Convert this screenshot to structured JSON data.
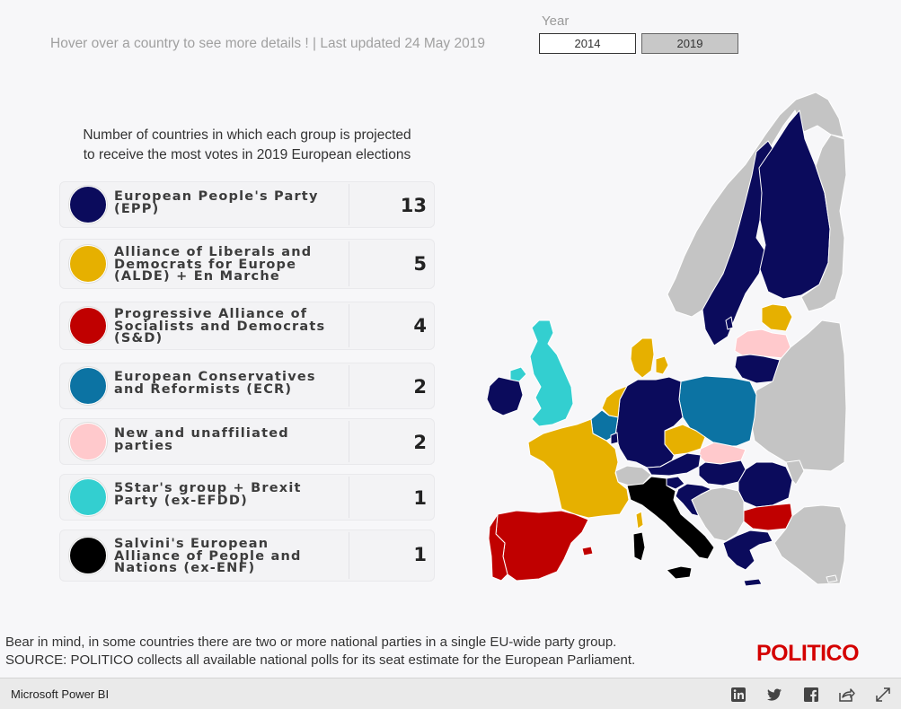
{
  "header": {
    "hover_note": "Hover over a country to see more details ! | Last updated 24 May 2019"
  },
  "year_slicer": {
    "label": "Year",
    "options": [
      "2014",
      "2019"
    ],
    "selected": "2019"
  },
  "legend": {
    "subtitle_line1": "Number of countries in which each group is projected",
    "subtitle_line2": "to receive the most votes in 2019 European elections",
    "items": [
      {
        "label": "European People's Party (EPP)",
        "count": "13",
        "color": "#0b0b5c"
      },
      {
        "label": "Alliance of Liberals and Democrats for Europe (ALDE) + En Marche",
        "count": "5",
        "color": "#e6b000"
      },
      {
        "label": "Progressive Alliance of Socialists and Democrats (S&D)",
        "count": "4",
        "color": "#c00000"
      },
      {
        "label": "European Conservatives and Reformists (ECR)",
        "count": "2",
        "color": "#0c73a3"
      },
      {
        "label": "New and unaffiliated parties",
        "count": "2",
        "color": "#ffc9cc"
      },
      {
        "label": "5Star's group + Brexit Party (ex-EFDD)",
        "count": "1",
        "color": "#33cfd0"
      },
      {
        "label": "Salvini's European Alliance of People and Nations (ex-ENF)",
        "count": "1",
        "color": "#000000"
      }
    ]
  },
  "map": {
    "colors": {
      "no_data": "#c4c4c4",
      "border": "#ffffff"
    }
  },
  "footer": {
    "note_line1": "Bear in mind, in some countries there are two or more national parties in a single EU-wide party group.",
    "source_label": "SOURCE:",
    "source_text": " POLITICO collects all available national polls for its seat estimate for the European Parliament.",
    "logo": "POLITICO"
  },
  "bottombar": {
    "brand": "Microsoft Power BI",
    "icons": [
      "linkedin-icon",
      "twitter-icon",
      "facebook-icon",
      "share-icon",
      "fullscreen-icon"
    ]
  }
}
